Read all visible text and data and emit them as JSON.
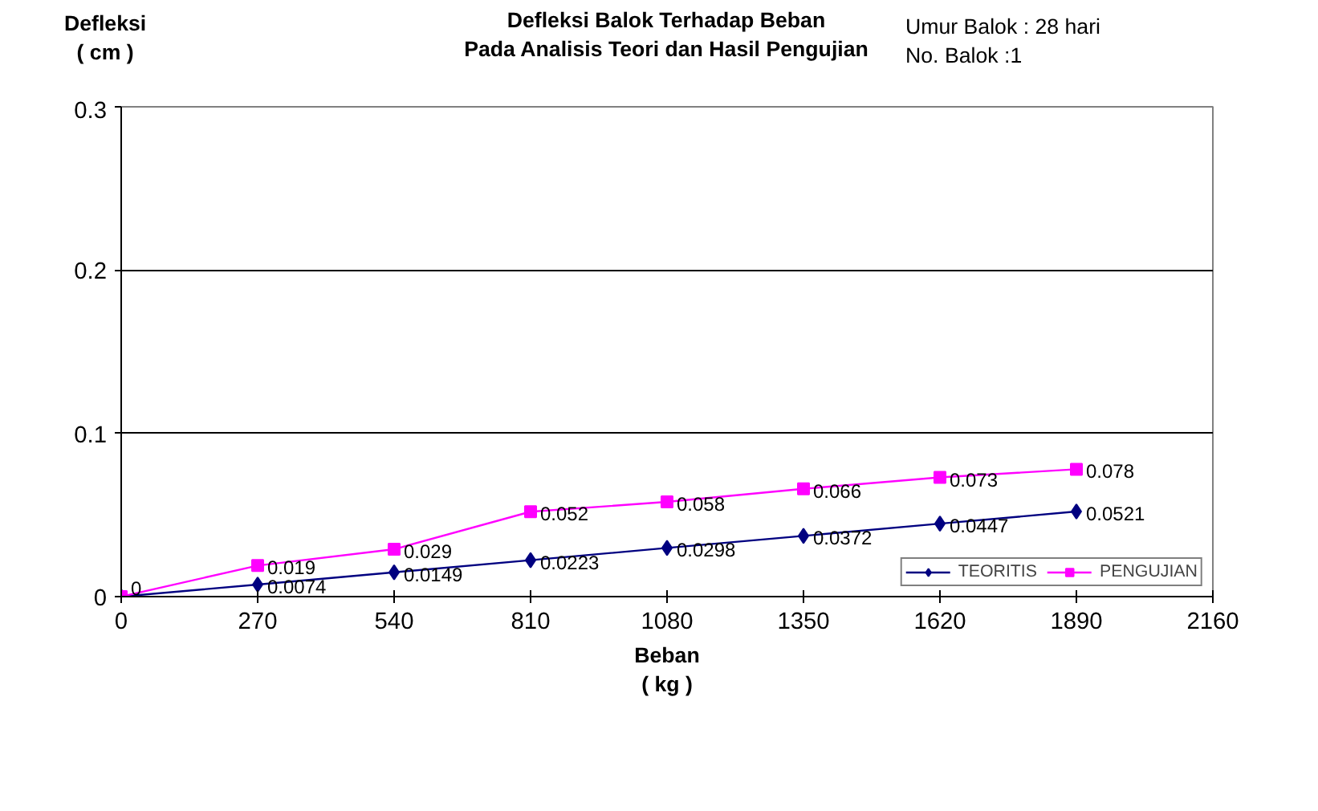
{
  "chart_data": {
    "type": "line",
    "title": "Defleksi Balok Terhadap Beban\nPada Analisis Teori dan Hasil Pengujian",
    "xlabel": "Beban\n( kg )",
    "ylabel": "Defleksi\n( cm )",
    "annotations": [
      "Umur Balok : 28 hari\nNo. Balok    :1"
    ],
    "x": [
      0,
      270,
      540,
      810,
      1080,
      1350,
      1620,
      1890
    ],
    "series": [
      {
        "name": "TEORITIS",
        "color": "#000080",
        "marker": "diamond",
        "values": [
          0,
          0.0074,
          0.0149,
          0.0223,
          0.0298,
          0.0372,
          0.0447,
          0.0521
        ],
        "value_labels": [
          null,
          "0.0074",
          "0.0149",
          "0.0223",
          "0.0298",
          "0.0372",
          "0.0447",
          "0.0521"
        ]
      },
      {
        "name": "PENGUJIAN",
        "color": "#ff00ff",
        "marker": "square",
        "values": [
          0,
          0.019,
          0.029,
          0.052,
          0.058,
          0.066,
          0.073,
          0.078
        ],
        "value_labels": [
          "0",
          "0.019",
          "0.029",
          "0.052",
          "0.058",
          "0.066",
          "0.073",
          "0.078"
        ]
      }
    ],
    "xlim": [
      0,
      2160
    ],
    "xticks": [
      0,
      270,
      540,
      810,
      1080,
      1350,
      1620,
      1890,
      2160
    ],
    "ylim": [
      0,
      0.3
    ],
    "yticks": [
      0,
      0.1,
      0.2,
      0.3
    ],
    "grid": "y",
    "legend": "bottom right",
    "data_labels": true
  }
}
